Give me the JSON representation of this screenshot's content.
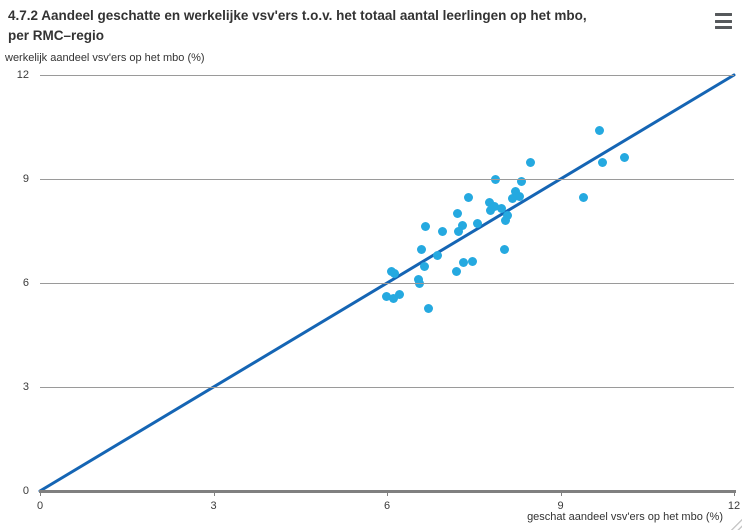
{
  "header": {
    "title_line1": "4.7.2 Aandeel geschatte en werkelijke vsv'ers t.o.v. het totaal aantal leerlingen op het mbo,",
    "title_line2": "per RMC–regio",
    "menu_icon": "hamburger-icon"
  },
  "chart_data": {
    "type": "scatter",
    "title": "4.7.2 Aandeel geschatte en werkelijke vsv'ers t.o.v. het totaal aantal leerlingen op het mbo, per RMC–regio",
    "xlabel": "geschat aandeel vsv'ers op het mbo (%)",
    "ylabel": "werkelijk aandeel vsv'ers op het mbo (%)",
    "xlim": [
      0,
      12
    ],
    "ylim": [
      0,
      12
    ],
    "x_ticks": [
      0,
      3,
      6,
      9,
      12
    ],
    "y_ticks": [
      0,
      3,
      6,
      9,
      12
    ],
    "grid": "horizontal-only",
    "legend": "none",
    "reference_line": {
      "label": "y = x",
      "from": [
        0,
        0
      ],
      "to": [
        12,
        12
      ],
      "color": "#1565b4",
      "width": 3
    },
    "marker": {
      "color": "#25a9e0",
      "radius": 4.5
    },
    "points": [
      [
        9.67,
        10.41
      ],
      [
        10.1,
        9.63
      ],
      [
        8.48,
        9.49
      ],
      [
        9.72,
        9.47
      ],
      [
        7.88,
        8.98
      ],
      [
        8.33,
        8.94
      ],
      [
        8.22,
        8.64
      ],
      [
        8.29,
        8.5
      ],
      [
        7.41,
        8.48
      ],
      [
        9.39,
        8.46
      ],
      [
        8.17,
        8.44
      ],
      [
        7.77,
        8.33
      ],
      [
        7.86,
        8.21
      ],
      [
        7.98,
        8.15
      ],
      [
        7.79,
        8.1
      ],
      [
        7.22,
        8.0
      ],
      [
        8.08,
        7.95
      ],
      [
        8.05,
        7.8
      ],
      [
        7.56,
        7.71
      ],
      [
        7.31,
        7.67
      ],
      [
        6.67,
        7.63
      ],
      [
        6.96,
        7.5
      ],
      [
        7.23,
        7.48
      ],
      [
        8.03,
        6.97
      ],
      [
        6.6,
        6.96
      ],
      [
        6.88,
        6.8
      ],
      [
        7.48,
        6.62
      ],
      [
        7.32,
        6.6
      ],
      [
        6.65,
        6.48
      ],
      [
        6.08,
        6.33
      ],
      [
        7.21,
        6.34
      ],
      [
        6.13,
        6.26
      ],
      [
        6.54,
        6.11
      ],
      [
        6.57,
        5.98
      ],
      [
        6.22,
        5.67
      ],
      [
        5.99,
        5.62
      ],
      [
        6.12,
        5.56
      ],
      [
        6.72,
        5.26
      ]
    ],
    "axis_colors": {
      "grid": "#9a9a9a",
      "axis_line": "#808080",
      "tick_text": "#3b3b3b",
      "title_text": "#333333"
    }
  }
}
